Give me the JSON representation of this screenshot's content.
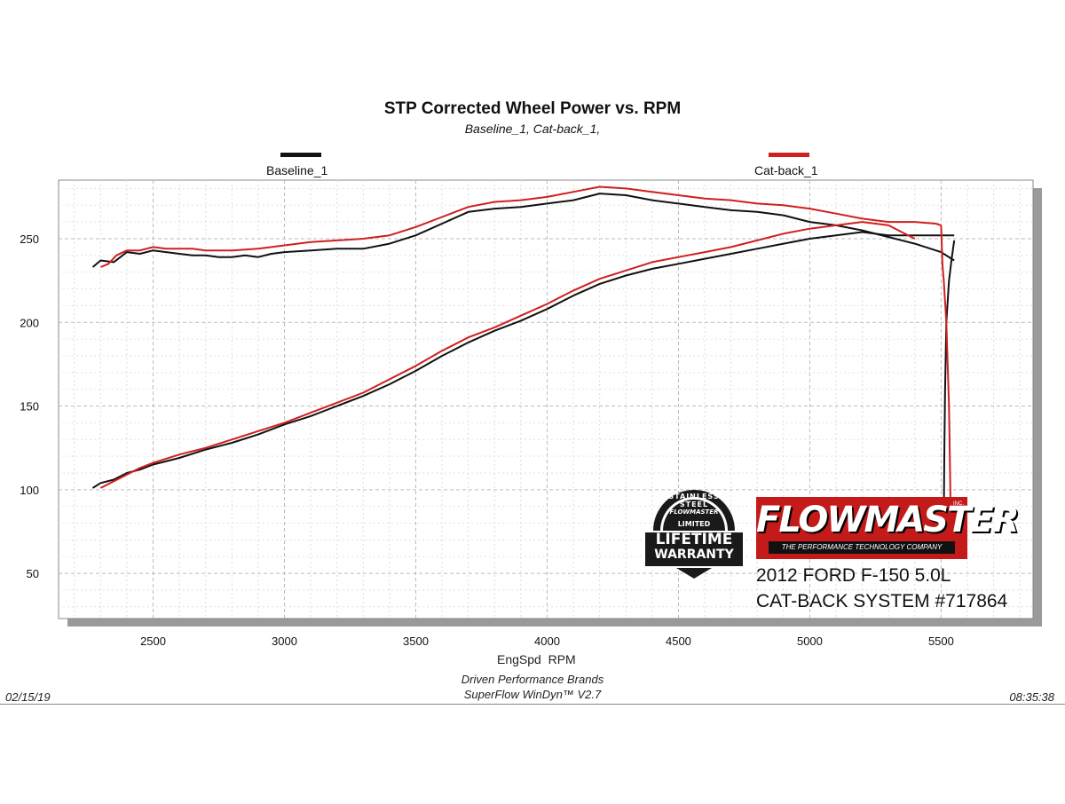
{
  "chart_data": {
    "type": "line",
    "title": "STP Corrected Wheel Power vs. RPM",
    "subtitle": "Baseline_1, Cat-back_1,",
    "xlabel": "EngSpd  RPM",
    "ylabel": "",
    "xlim": [
      2140,
      5850
    ],
    "ylim": [
      23,
      285
    ],
    "x_ticks": [
      2500,
      3000,
      3500,
      4000,
      4500,
      5000,
      5500
    ],
    "y_ticks": [
      50,
      100,
      150,
      200,
      250
    ],
    "grid": true,
    "legend_position": "top",
    "series": [
      {
        "name": "Baseline_1",
        "color": "#111111",
        "segments": [
          {
            "label": "power",
            "points": [
              [
                2270,
                233
              ],
              [
                2300,
                237
              ],
              [
                2350,
                236
              ],
              [
                2400,
                242
              ],
              [
                2450,
                241
              ],
              [
                2500,
                243
              ],
              [
                2550,
                242
              ],
              [
                2600,
                241
              ],
              [
                2650,
                240
              ],
              [
                2700,
                240
              ],
              [
                2750,
                239
              ],
              [
                2800,
                239
              ],
              [
                2850,
                240
              ],
              [
                2900,
                239
              ],
              [
                2950,
                241
              ],
              [
                3000,
                242
              ],
              [
                3100,
                243
              ],
              [
                3200,
                244
              ],
              [
                3300,
                244
              ],
              [
                3400,
                247
              ],
              [
                3500,
                252
              ],
              [
                3600,
                259
              ],
              [
                3700,
                266
              ],
              [
                3800,
                268
              ],
              [
                3900,
                269
              ],
              [
                4000,
                271
              ],
              [
                4100,
                273
              ],
              [
                4200,
                277
              ],
              [
                4300,
                276
              ],
              [
                4400,
                273
              ],
              [
                4500,
                271
              ],
              [
                4600,
                269
              ],
              [
                4700,
                267
              ],
              [
                4800,
                266
              ],
              [
                4900,
                264
              ],
              [
                5000,
                260
              ],
              [
                5100,
                258
              ],
              [
                5200,
                255
              ],
              [
                5300,
                251
              ],
              [
                5400,
                247
              ],
              [
                5480,
                243
              ],
              [
                5500,
                242
              ],
              [
                5550,
                237
              ]
            ]
          },
          {
            "label": "drop",
            "points": [
              [
                5550,
                249
              ],
              [
                5540,
                238
              ],
              [
                5530,
                225
              ],
              [
                5520,
                200
              ],
              [
                5515,
                160
              ],
              [
                5512,
                120
              ],
              [
                5510,
                80
              ],
              [
                5510,
                65
              ]
            ]
          },
          {
            "label": "torque",
            "points": [
              [
                2270,
                101
              ],
              [
                2300,
                104
              ],
              [
                2350,
                106
              ],
              [
                2400,
                110
              ],
              [
                2450,
                112
              ],
              [
                2500,
                115
              ],
              [
                2600,
                119
              ],
              [
                2700,
                124
              ],
              [
                2800,
                128
              ],
              [
                2900,
                133
              ],
              [
                3000,
                139
              ],
              [
                3100,
                144
              ],
              [
                3200,
                150
              ],
              [
                3300,
                156
              ],
              [
                3400,
                163
              ],
              [
                3500,
                171
              ],
              [
                3600,
                180
              ],
              [
                3700,
                188
              ],
              [
                3800,
                195
              ],
              [
                3900,
                201
              ],
              [
                4000,
                208
              ],
              [
                4100,
                216
              ],
              [
                4200,
                223
              ],
              [
                4300,
                228
              ],
              [
                4400,
                232
              ],
              [
                4500,
                235
              ],
              [
                4600,
                238
              ],
              [
                4700,
                241
              ],
              [
                4800,
                244
              ],
              [
                4900,
                247
              ],
              [
                5000,
                250
              ],
              [
                5100,
                252
              ],
              [
                5200,
                254
              ],
              [
                5300,
                252
              ],
              [
                5400,
                252
              ],
              [
                5500,
                252
              ],
              [
                5550,
                252
              ]
            ]
          }
        ]
      },
      {
        "name": "Cat-back_1",
        "color": "#d01f1f",
        "segments": [
          {
            "label": "power",
            "points": [
              [
                2300,
                233
              ],
              [
                2330,
                235
              ],
              [
                2360,
                240
              ],
              [
                2400,
                243
              ],
              [
                2450,
                243
              ],
              [
                2500,
                245
              ],
              [
                2550,
                244
              ],
              [
                2600,
                244
              ],
              [
                2650,
                244
              ],
              [
                2700,
                243
              ],
              [
                2750,
                243
              ],
              [
                2800,
                243
              ],
              [
                2900,
                244
              ],
              [
                3000,
                246
              ],
              [
                3100,
                248
              ],
              [
                3200,
                249
              ],
              [
                3300,
                250
              ],
              [
                3400,
                252
              ],
              [
                3500,
                257
              ],
              [
                3600,
                263
              ],
              [
                3700,
                269
              ],
              [
                3800,
                272
              ],
              [
                3900,
                273
              ],
              [
                4000,
                275
              ],
              [
                4100,
                278
              ],
              [
                4200,
                281
              ],
              [
                4300,
                280
              ],
              [
                4400,
                278
              ],
              [
                4500,
                276
              ],
              [
                4600,
                274
              ],
              [
                4700,
                273
              ],
              [
                4800,
                271
              ],
              [
                4900,
                270
              ],
              [
                5000,
                268
              ],
              [
                5100,
                265
              ],
              [
                5200,
                262
              ],
              [
                5300,
                260
              ],
              [
                5400,
                260
              ],
              [
                5480,
                259
              ],
              [
                5500,
                258
              ]
            ]
          },
          {
            "label": "drop",
            "points": [
              [
                5500,
                258
              ],
              [
                5505,
                235
              ],
              [
                5510,
                225
              ],
              [
                5520,
                200
              ],
              [
                5530,
                150
              ],
              [
                5535,
                100
              ],
              [
                5538,
                65
              ]
            ]
          },
          {
            "label": "torque",
            "points": [
              [
                2300,
                101
              ],
              [
                2350,
                105
              ],
              [
                2400,
                109
              ],
              [
                2450,
                113
              ],
              [
                2500,
                116
              ],
              [
                2600,
                121
              ],
              [
                2700,
                125
              ],
              [
                2800,
                130
              ],
              [
                2900,
                135
              ],
              [
                3000,
                140
              ],
              [
                3100,
                146
              ],
              [
                3200,
                152
              ],
              [
                3300,
                158
              ],
              [
                3400,
                166
              ],
              [
                3500,
                174
              ],
              [
                3600,
                183
              ],
              [
                3700,
                191
              ],
              [
                3800,
                197
              ],
              [
                3900,
                204
              ],
              [
                4000,
                211
              ],
              [
                4100,
                219
              ],
              [
                4200,
                226
              ],
              [
                4300,
                231
              ],
              [
                4400,
                236
              ],
              [
                4500,
                239
              ],
              [
                4600,
                242
              ],
              [
                4700,
                245
              ],
              [
                4800,
                249
              ],
              [
                4900,
                253
              ],
              [
                5000,
                256
              ],
              [
                5100,
                258
              ],
              [
                5200,
                260
              ],
              [
                5300,
                258
              ],
              [
                5400,
                250
              ]
            ]
          }
        ]
      }
    ]
  },
  "footer": {
    "line1": "Driven Performance Brands",
    "line2": "SuperFlow WinDyn™  V2.7",
    "date": "02/15/19",
    "time": "08:35:38"
  },
  "badge": {
    "ring_text": "STAINLESS STEEL",
    "brand": "FLOWMASTER",
    "limited": "LIMITED",
    "line1": "LIFETIME",
    "line2": "WARRANTY",
    "color": "#1a1a1a"
  },
  "logo": {
    "brand": "FLOWMASTER",
    "inc": "INC.",
    "tagline": "THE PERFORMANCE TECHNOLOGY COMPANY",
    "color": "#c41a1a"
  },
  "vehicle": {
    "line1": "2012 FORD F-150 5.0L",
    "line2": "CAT-BACK SYSTEM #717864"
  }
}
